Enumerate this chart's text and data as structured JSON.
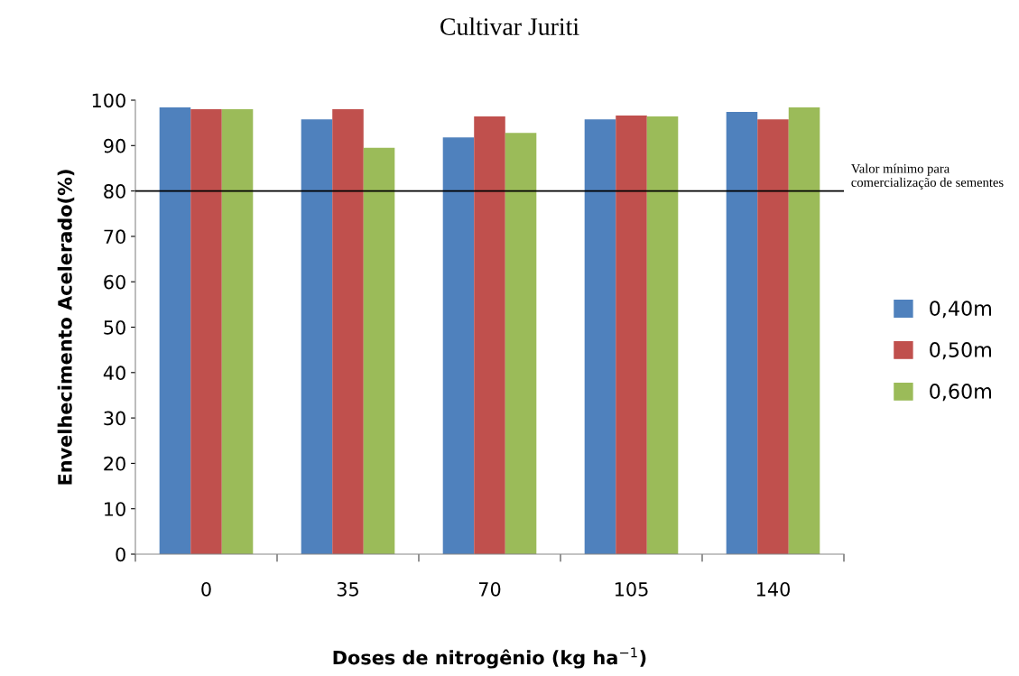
{
  "chart_data": {
    "type": "bar",
    "title": "Cultivar Juriti",
    "xlabel": "Doses de nitrogênio (kg ha$^{−1}$)",
    "ylabel": "Envelhecimento Acelerado(%)",
    "categories": [
      "0",
      "35",
      "70",
      "105",
      "140"
    ],
    "series": [
      {
        "name": "0,40m",
        "color": "#4f81bd",
        "values": [
          98.4,
          95.8,
          91.8,
          95.8,
          97.4
        ]
      },
      {
        "name": "0,50m",
        "color": "#c0504d",
        "values": [
          98.0,
          98.0,
          96.4,
          96.6,
          95.8
        ]
      },
      {
        "name": "0,60m",
        "color": "#9bbb59",
        "values": [
          98.0,
          89.5,
          92.8,
          96.4,
          98.4
        ]
      }
    ],
    "ylim": [
      0,
      100
    ],
    "yticks": [
      0,
      10,
      20,
      30,
      40,
      50,
      60,
      70,
      80,
      90,
      100
    ],
    "ref_lines": [
      {
        "axis": "y",
        "value": 80,
        "label": "Valor mínimo para comercialização de sementes",
        "color": "#000000"
      }
    ],
    "grid": false,
    "legend": "right"
  }
}
